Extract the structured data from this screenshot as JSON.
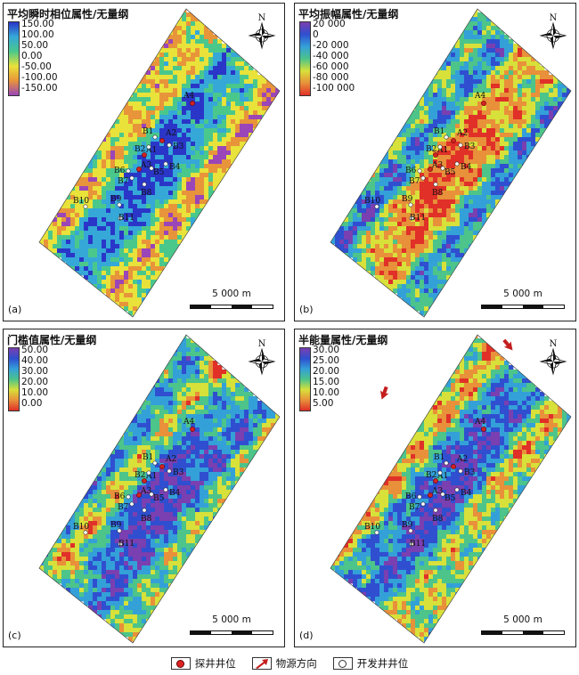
{
  "panels": [
    {
      "id": "a",
      "title": "平均瞬时相位属性/无量纲",
      "label": "(a)",
      "ticks": [
        "150.00",
        "100.00",
        "50.00",
        "0.00",
        "-50.00",
        "-100.00",
        "-150.00"
      ],
      "colorbar": [
        "#2a36c8",
        "#35a8d8",
        "#4ac88c",
        "#e8e23a",
        "#e8943a",
        "#9a45b8"
      ]
    },
    {
      "id": "b",
      "title": "平均振幅属性/无量纲",
      "label": "(b)",
      "ticks": [
        "20 000",
        "0",
        "-20 000",
        "-40 000",
        "-60 000",
        "-80 000",
        "-100 000"
      ],
      "colorbar": [
        "#7a3fb0",
        "#2f4fd0",
        "#34a0d8",
        "#4cc48a",
        "#d8e03a",
        "#e8903a",
        "#e03028"
      ]
    },
    {
      "id": "c",
      "title": "门槛值属性/无量纲",
      "label": "(c)",
      "ticks": [
        "50.00",
        "40.00",
        "30.00",
        "20.00",
        "10.00",
        "0.00"
      ],
      "colorbar": [
        "#7a3fb0",
        "#2f4fd0",
        "#34a0d8",
        "#4cc48a",
        "#d8e03a",
        "#e8903a",
        "#e03028"
      ]
    },
    {
      "id": "d",
      "title": "半能量属性/无量纲",
      "label": "(d)",
      "ticks": [
        "30.00",
        "25.00",
        "20.00",
        "15.00",
        "10.00",
        "5.00"
      ],
      "colorbar": [
        "#7a3fb0",
        "#2f4fd0",
        "#34a0d8",
        "#4cc48a",
        "#d8e03a",
        "#e8903a",
        "#e03028"
      ]
    }
  ],
  "north_label": "N",
  "scale_label": "5 000 m",
  "wells": [
    {
      "name": "A4",
      "type": "exploration"
    },
    {
      "name": "A2",
      "type": "exploration"
    },
    {
      "name": "A1",
      "type": "exploration"
    },
    {
      "name": "A3",
      "type": "exploration"
    },
    {
      "name": "B1",
      "type": "development"
    },
    {
      "name": "B2",
      "type": "development"
    },
    {
      "name": "B3",
      "type": "development"
    },
    {
      "name": "B4",
      "type": "development"
    },
    {
      "name": "B5",
      "type": "development"
    },
    {
      "name": "B6",
      "type": "development"
    },
    {
      "name": "B7",
      "type": "development"
    },
    {
      "name": "B8",
      "type": "development"
    },
    {
      "name": "B9",
      "type": "development"
    },
    {
      "name": "B10",
      "type": "development"
    },
    {
      "name": "B11",
      "type": "development"
    }
  ],
  "legend": {
    "exploration_well": "探井井位",
    "source_direction": "物源方向",
    "development_well": "开发井井位"
  },
  "colors": {
    "exploration": "#d22222",
    "arrow": "#c41e1e",
    "survey_outline": "#333333"
  }
}
